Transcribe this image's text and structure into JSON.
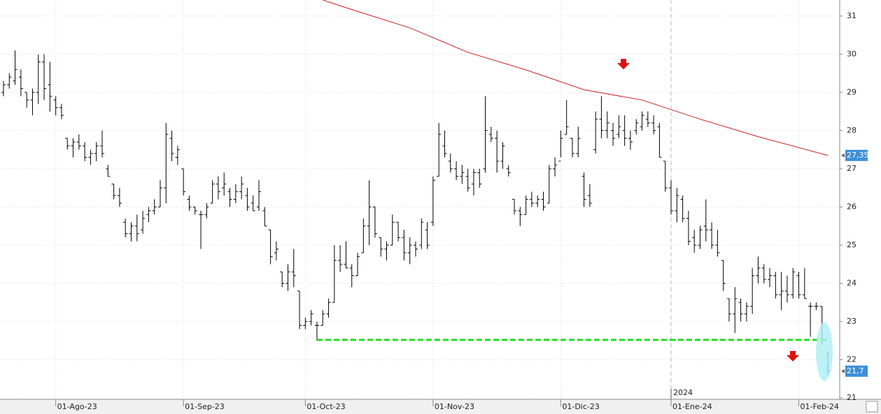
{
  "chart_data": {
    "type": "ohlc",
    "xlim": [
      -0.6,
      144.05
    ],
    "ylim": [
      21,
      31.42
    ],
    "yticks": [
      21,
      22,
      23,
      24,
      25,
      26,
      27,
      28,
      29,
      30,
      31
    ],
    "xticks": [
      {
        "value": 9,
        "label": "01-Ago-23"
      },
      {
        "value": 31,
        "label": "01-Sep-23"
      },
      {
        "value": 52,
        "label": "01-Oct-23"
      },
      {
        "value": 74,
        "label": "01-Nov-23"
      },
      {
        "value": 96,
        "label": "01-Dic-23"
      },
      {
        "value": 115,
        "label": "01-Ene-24"
      },
      {
        "value": 137,
        "label": "01-Feb-24"
      }
    ],
    "year_marker": {
      "value": 115,
      "label": "2024"
    },
    "grid": true,
    "color": "#000000",
    "open": [
      29.0,
      29.2,
      29.3,
      29.4,
      29.0,
      28.8,
      29.0,
      29.8,
      29.2,
      28.8,
      28.6,
      27.8,
      27.6,
      27.7,
      27.6,
      27.3,
      27.4,
      27.6,
      27.0,
      26.6,
      26.3,
      25.6,
      25.3,
      25.5,
      25.4,
      25.8,
      25.9,
      26.0,
      26.5,
      27.8,
      27.3,
      27.0,
      26.2,
      26.0,
      25.8,
      25.8,
      26.1,
      26.6,
      26.5,
      26.4,
      26.2,
      26.4,
      26.3,
      26.1,
      26.0,
      25.9,
      25.4,
      24.8,
      24.3,
      24.0,
      24.3,
      23.8,
      22.9,
      23.0,
      22.9,
      22.9,
      23.2,
      23.5,
      24.6,
      24.5,
      24.4,
      24.2,
      24.8,
      25.5,
      26.0,
      25.2,
      24.9,
      25.0,
      25.6,
      25.2,
      24.8,
      25.0,
      25.0,
      25.4,
      25.6,
      26.8,
      27.6,
      27.2,
      27.0,
      26.8,
      26.8,
      26.6,
      26.9,
      27.0,
      27.9,
      27.8,
      27.2,
      27.0,
      26.2,
      25.9,
      25.8,
      26.2,
      26.1,
      26.2,
      26.1,
      27.0,
      27.2,
      27.9,
      27.8,
      27.4,
      26.8,
      26.3,
      27.5,
      28.3,
      28.0,
      28.0,
      27.9,
      28.0,
      27.8,
      28.0,
      28.1,
      28.3,
      28.2,
      28.1,
      27.2,
      26.5,
      25.9,
      26.2,
      25.7,
      25.2,
      25.0,
      25.5,
      25.4,
      25.0,
      24.6,
      23.6,
      23.2,
      23.5,
      23.2,
      23.4,
      24.2,
      24.4,
      24.1,
      24.2,
      23.7,
      23.8,
      23.7,
      24.2,
      23.7,
      23.4,
      23.4,
      23.4,
      22.2
    ],
    "high": [
      29.3,
      29.5,
      30.1,
      29.6,
      29.0,
      29.1,
      30.0,
      30.0,
      29.8,
      28.9,
      28.7,
      27.8,
      27.8,
      27.9,
      27.7,
      27.5,
      27.7,
      28.0,
      27.1,
      26.6,
      26.5,
      25.7,
      25.6,
      25.8,
      25.9,
      26.0,
      26.2,
      26.7,
      28.2,
      28.0,
      27.6,
      27.0,
      26.3,
      26.0,
      25.9,
      26.1,
      26.7,
      26.8,
      26.9,
      26.5,
      26.6,
      26.8,
      26.5,
      26.3,
      26.7,
      26.0,
      25.4,
      25.1,
      24.3,
      24.5,
      24.9,
      23.8,
      23.1,
      23.3,
      23.0,
      23.3,
      23.6,
      25.0,
      25.0,
      25.1,
      24.5,
      24.8,
      25.7,
      26.7,
      26.0,
      25.2,
      25.1,
      25.8,
      25.6,
      25.4,
      25.2,
      25.1,
      25.7,
      25.6,
      26.8,
      28.2,
      28.0,
      27.4,
      27.2,
      27.1,
      27.0,
      27.0,
      27.0,
      28.9,
      28.1,
      28.0,
      27.7,
      27.1,
      26.2,
      26.0,
      26.3,
      26.4,
      26.3,
      26.4,
      27.1,
      27.3,
      28.0,
      28.8,
      27.8,
      28.1,
      26.9,
      26.6,
      28.5,
      28.9,
      28.5,
      28.2,
      28.4,
      28.4,
      28.0,
      28.3,
      28.5,
      28.5,
      28.4,
      28.2,
      27.2,
      26.7,
      26.5,
      26.3,
      25.9,
      25.4,
      25.5,
      26.2,
      25.6,
      25.4,
      24.6,
      23.6,
      23.9,
      23.6,
      23.5,
      24.4,
      24.7,
      24.5,
      24.4,
      24.3,
      24.3,
      24.2,
      24.4,
      24.3,
      24.4,
      23.5,
      23.5,
      23.4,
      22.2
    ],
    "low": [
      28.9,
      29.1,
      29.2,
      28.9,
      28.6,
      28.4,
      28.7,
      28.8,
      28.5,
      28.4,
      28.3,
      27.5,
      27.3,
      27.5,
      27.2,
      27.1,
      27.2,
      27.3,
      26.8,
      26.2,
      26.0,
      25.2,
      25.1,
      25.1,
      25.3,
      25.6,
      25.8,
      26.0,
      26.1,
      27.2,
      27.1,
      26.3,
      25.9,
      25.8,
      24.9,
      25.7,
      26.1,
      26.2,
      26.3,
      26.0,
      26.1,
      26.2,
      25.9,
      25.9,
      25.9,
      25.5,
      24.5,
      24.6,
      23.9,
      23.8,
      23.9,
      22.8,
      22.8,
      22.9,
      22.5,
      22.9,
      23.1,
      23.5,
      24.3,
      24.4,
      23.9,
      24.2,
      24.8,
      25.0,
      25.2,
      24.7,
      24.6,
      25.0,
      25.1,
      24.6,
      24.5,
      24.7,
      24.9,
      24.9,
      25.5,
      26.8,
      27.3,
      26.9,
      26.7,
      26.6,
      26.4,
      26.3,
      26.5,
      26.9,
      27.7,
      26.9,
      27.0,
      26.8,
      25.8,
      25.5,
      25.8,
      26.0,
      26.0,
      25.9,
      26.1,
      26.8,
      27.3,
      27.9,
      27.3,
      27.3,
      26.0,
      26.0,
      27.4,
      27.8,
      27.8,
      27.6,
      27.8,
      27.6,
      27.5,
      27.9,
      28.0,
      28.1,
      27.9,
      27.3,
      26.4,
      25.8,
      25.6,
      25.6,
      25.0,
      24.8,
      24.9,
      25.1,
      24.9,
      24.7,
      23.8,
      23.0,
      22.7,
      23.0,
      23.0,
      23.2,
      24.0,
      24.0,
      23.9,
      23.6,
      23.3,
      23.5,
      23.6,
      23.6,
      23.6,
      22.6,
      23.3,
      22.4,
      21.6
    ],
    "close": [
      29.2,
      29.4,
      29.6,
      29.1,
      28.8,
      29.0,
      29.8,
      29.1,
      28.9,
      28.6,
      28.4,
      27.6,
      27.7,
      27.6,
      27.3,
      27.4,
      27.6,
      27.4,
      26.8,
      26.3,
      26.1,
      25.3,
      25.5,
      25.3,
      25.7,
      25.9,
      26.0,
      26.5,
      27.9,
      27.4,
      27.5,
      26.4,
      26.0,
      25.9,
      25.8,
      26.0,
      26.6,
      26.4,
      26.6,
      26.2,
      26.4,
      26.6,
      26.0,
      25.9,
      26.4,
      25.5,
      24.7,
      24.9,
      24.0,
      24.3,
      24.2,
      22.9,
      23.0,
      23.2,
      22.9,
      23.2,
      23.5,
      24.6,
      24.5,
      24.4,
      24.2,
      24.7,
      25.5,
      26.0,
      25.3,
      24.9,
      25.0,
      25.6,
      25.2,
      24.8,
      25.0,
      24.9,
      25.6,
      25.0,
      26.7,
      27.9,
      27.4,
      27.0,
      26.8,
      26.9,
      26.5,
      26.9,
      26.6,
      28.0,
      27.8,
      27.2,
      27.6,
      26.9,
      25.9,
      25.8,
      26.2,
      26.1,
      26.2,
      26.0,
      27.0,
      27.1,
      27.8,
      28.1,
      27.4,
      27.8,
      26.2,
      26.1,
      28.3,
      28.0,
      28.2,
      27.8,
      28.1,
      27.8,
      27.7,
      28.2,
      28.4,
      28.2,
      28.0,
      27.3,
      26.5,
      25.9,
      26.3,
      25.7,
      25.1,
      25.0,
      25.4,
      25.4,
      25.0,
      24.8,
      24.0,
      23.2,
      23.6,
      23.2,
      23.4,
      24.2,
      24.4,
      24.1,
      24.2,
      23.7,
      23.8,
      23.7,
      24.3,
      23.7,
      23.6,
      23.4,
      23.4,
      22.5,
      21.7
    ],
    "moving_average": {
      "color": "#cc1f1f",
      "x": [
        55,
        60,
        70,
        80,
        90,
        100,
        110,
        120,
        130,
        142
      ],
      "values": [
        31.42,
        31.17,
        30.69,
        30.05,
        29.59,
        29.07,
        28.8,
        28.3,
        27.84,
        27.35
      ]
    },
    "support": {
      "color": "#22dd22",
      "x": [
        54,
        142
      ],
      "values": [
        22.52,
        22.52
      ]
    },
    "ma_last": {
      "value": 27.35,
      "label": "27,35"
    },
    "last_price": {
      "value": 21.7,
      "label": "21,7"
    }
  }
}
